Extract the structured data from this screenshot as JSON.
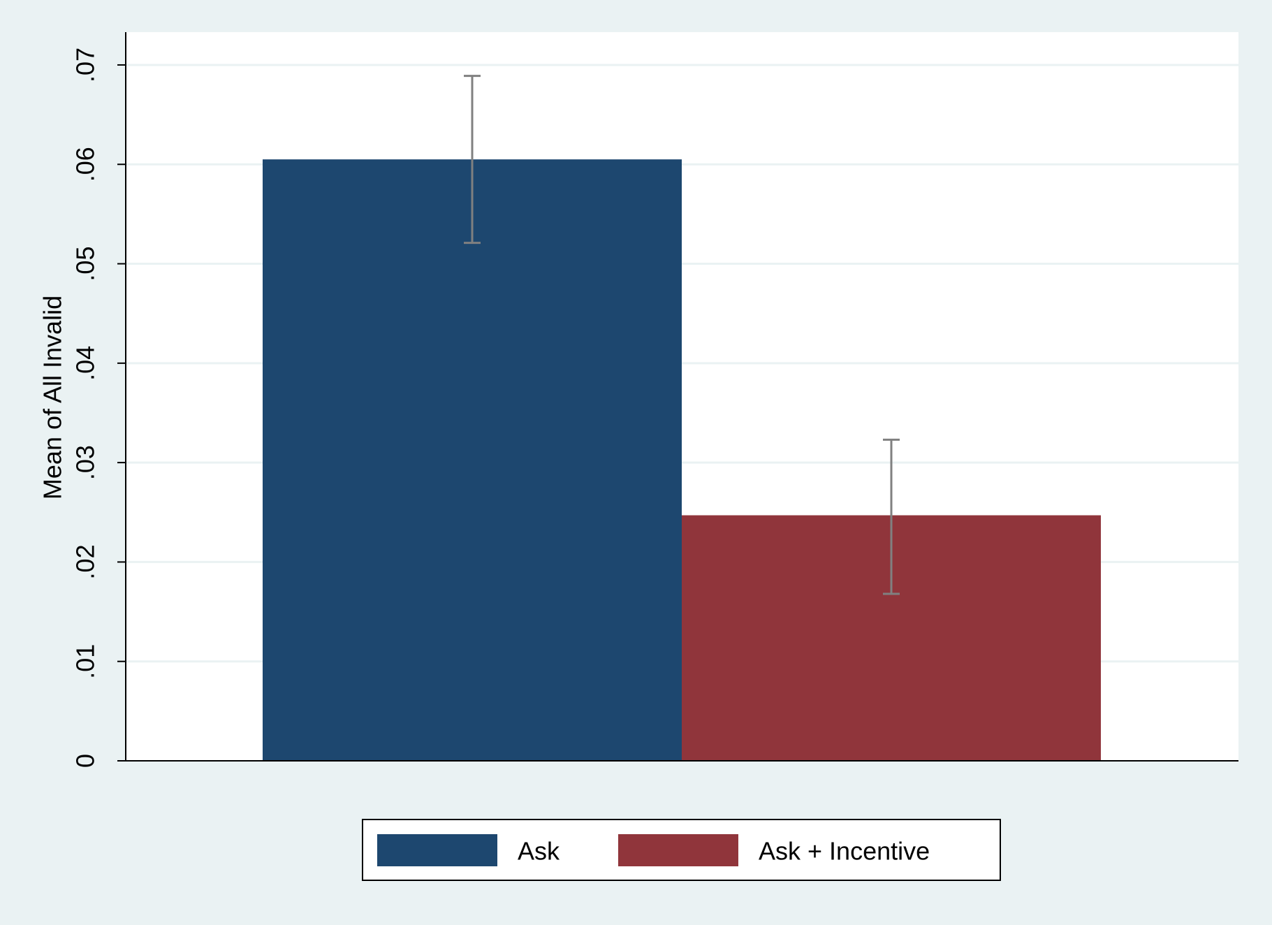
{
  "chart_data": {
    "type": "bar",
    "y_label": "Mean of All Invalid",
    "series": [
      {
        "name": "Ask",
        "color": "#1d476f",
        "values": [
          0.0605
        ],
        "ci_low": [
          0.0521
        ],
        "ci_high": [
          0.0689
        ]
      },
      {
        "name": "Ask + Incentive",
        "color": "#90353b",
        "values": [
          0.0247
        ],
        "ci_low": [
          0.0168
        ],
        "ci_high": [
          0.0323
        ]
      }
    ],
    "ylim": [
      0,
      0.0733
    ],
    "yticks": [
      0,
      {
        "value": 0.01,
        "label": ".01"
      },
      {
        "value": 0.02,
        "label": ".02"
      },
      {
        "value": 0.03,
        "label": ".03"
      },
      {
        "value": 0.04,
        "label": ".04"
      },
      {
        "value": 0.05,
        "label": ".05"
      },
      {
        "value": 0.06,
        "label": ".06"
      },
      {
        "value": 0.07,
        "label": ".07"
      }
    ],
    "grid": true,
    "legend": "bottom"
  }
}
